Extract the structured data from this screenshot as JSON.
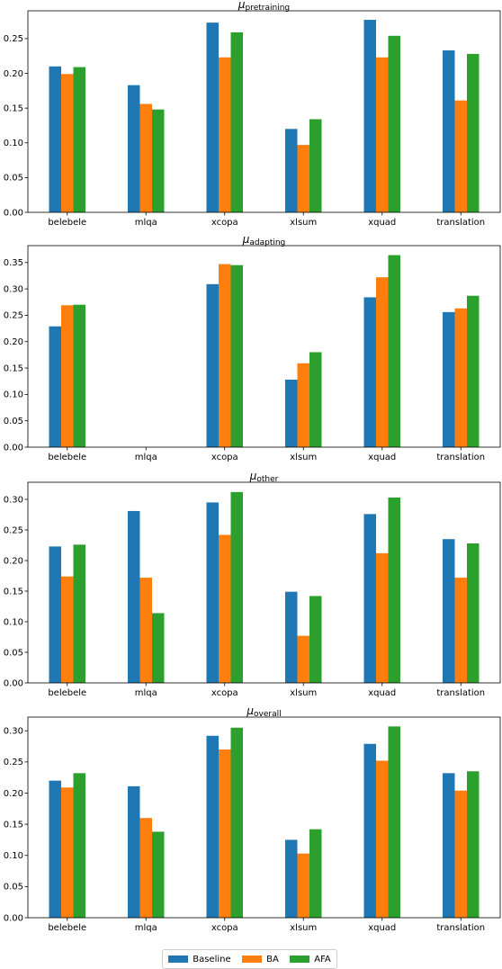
{
  "chart_data": [
    {
      "type": "bar",
      "title_symbol": "μ",
      "title_subscript": "pretraining",
      "categories": [
        "belebele",
        "mlqa",
        "xcopa",
        "xlsum",
        "xquad",
        "translation"
      ],
      "ylim": [
        0,
        0.29
      ],
      "yticks": [
        "0.00",
        "0.05",
        "0.10",
        "0.15",
        "0.20",
        "0.25"
      ],
      "series": [
        {
          "name": "Baseline",
          "values": [
            0.21,
            0.183,
            0.273,
            0.12,
            0.277,
            0.233
          ]
        },
        {
          "name": "BA",
          "values": [
            0.199,
            0.156,
            0.223,
            0.097,
            0.223,
            0.161
          ]
        },
        {
          "name": "AFA",
          "values": [
            0.209,
            0.148,
            0.259,
            0.134,
            0.254,
            0.228
          ]
        }
      ]
    },
    {
      "type": "bar",
      "title_symbol": "μ",
      "title_subscript": "adapting",
      "categories": [
        "belebele",
        "mlqa",
        "xcopa",
        "xlsum",
        "xquad",
        "translation"
      ],
      "ylim": [
        0,
        0.382
      ],
      "yticks": [
        "0.00",
        "0.05",
        "0.10",
        "0.15",
        "0.20",
        "0.25",
        "0.30",
        "0.35"
      ],
      "series": [
        {
          "name": "Baseline",
          "values": [
            0.229,
            0,
            0.309,
            0.128,
            0.284,
            0.256
          ]
        },
        {
          "name": "BA",
          "values": [
            0.269,
            0,
            0.347,
            0.159,
            0.322,
            0.263
          ]
        },
        {
          "name": "AFA",
          "values": [
            0.27,
            0,
            0.345,
            0.18,
            0.364,
            0.287
          ]
        }
      ]
    },
    {
      "type": "bar",
      "title_symbol": "μ",
      "title_subscript": "other",
      "categories": [
        "belebele",
        "mlqa",
        "xcopa",
        "xlsum",
        "xquad",
        "translation"
      ],
      "ylim": [
        0,
        0.328
      ],
      "yticks": [
        "0.00",
        "0.05",
        "0.10",
        "0.15",
        "0.20",
        "0.25",
        "0.30"
      ],
      "series": [
        {
          "name": "Baseline",
          "values": [
            0.223,
            0.281,
            0.295,
            0.149,
            0.276,
            0.235
          ]
        },
        {
          "name": "BA",
          "values": [
            0.174,
            0.172,
            0.242,
            0.077,
            0.212,
            0.172
          ]
        },
        {
          "name": "AFA",
          "values": [
            0.226,
            0.114,
            0.312,
            0.142,
            0.303,
            0.228
          ]
        }
      ]
    },
    {
      "type": "bar",
      "title_symbol": "μ",
      "title_subscript": "overall",
      "categories": [
        "belebele",
        "mlqa",
        "xcopa",
        "xlsum",
        "xquad",
        "translation"
      ],
      "ylim": [
        0,
        0.322
      ],
      "yticks": [
        "0.00",
        "0.05",
        "0.10",
        "0.15",
        "0.20",
        "0.25",
        "0.30"
      ],
      "series": [
        {
          "name": "Baseline",
          "values": [
            0.22,
            0.211,
            0.292,
            0.125,
            0.279,
            0.232
          ]
        },
        {
          "name": "BA",
          "values": [
            0.209,
            0.16,
            0.27,
            0.103,
            0.252,
            0.204
          ]
        },
        {
          "name": "AFA",
          "values": [
            0.232,
            0.138,
            0.305,
            0.142,
            0.307,
            0.235
          ]
        }
      ]
    }
  ],
  "legend": [
    {
      "label": "Baseline",
      "color": "#1f77b4"
    },
    {
      "label": "BA",
      "color": "#ff7f0e"
    },
    {
      "label": "AFA",
      "color": "#2ca02c"
    }
  ]
}
